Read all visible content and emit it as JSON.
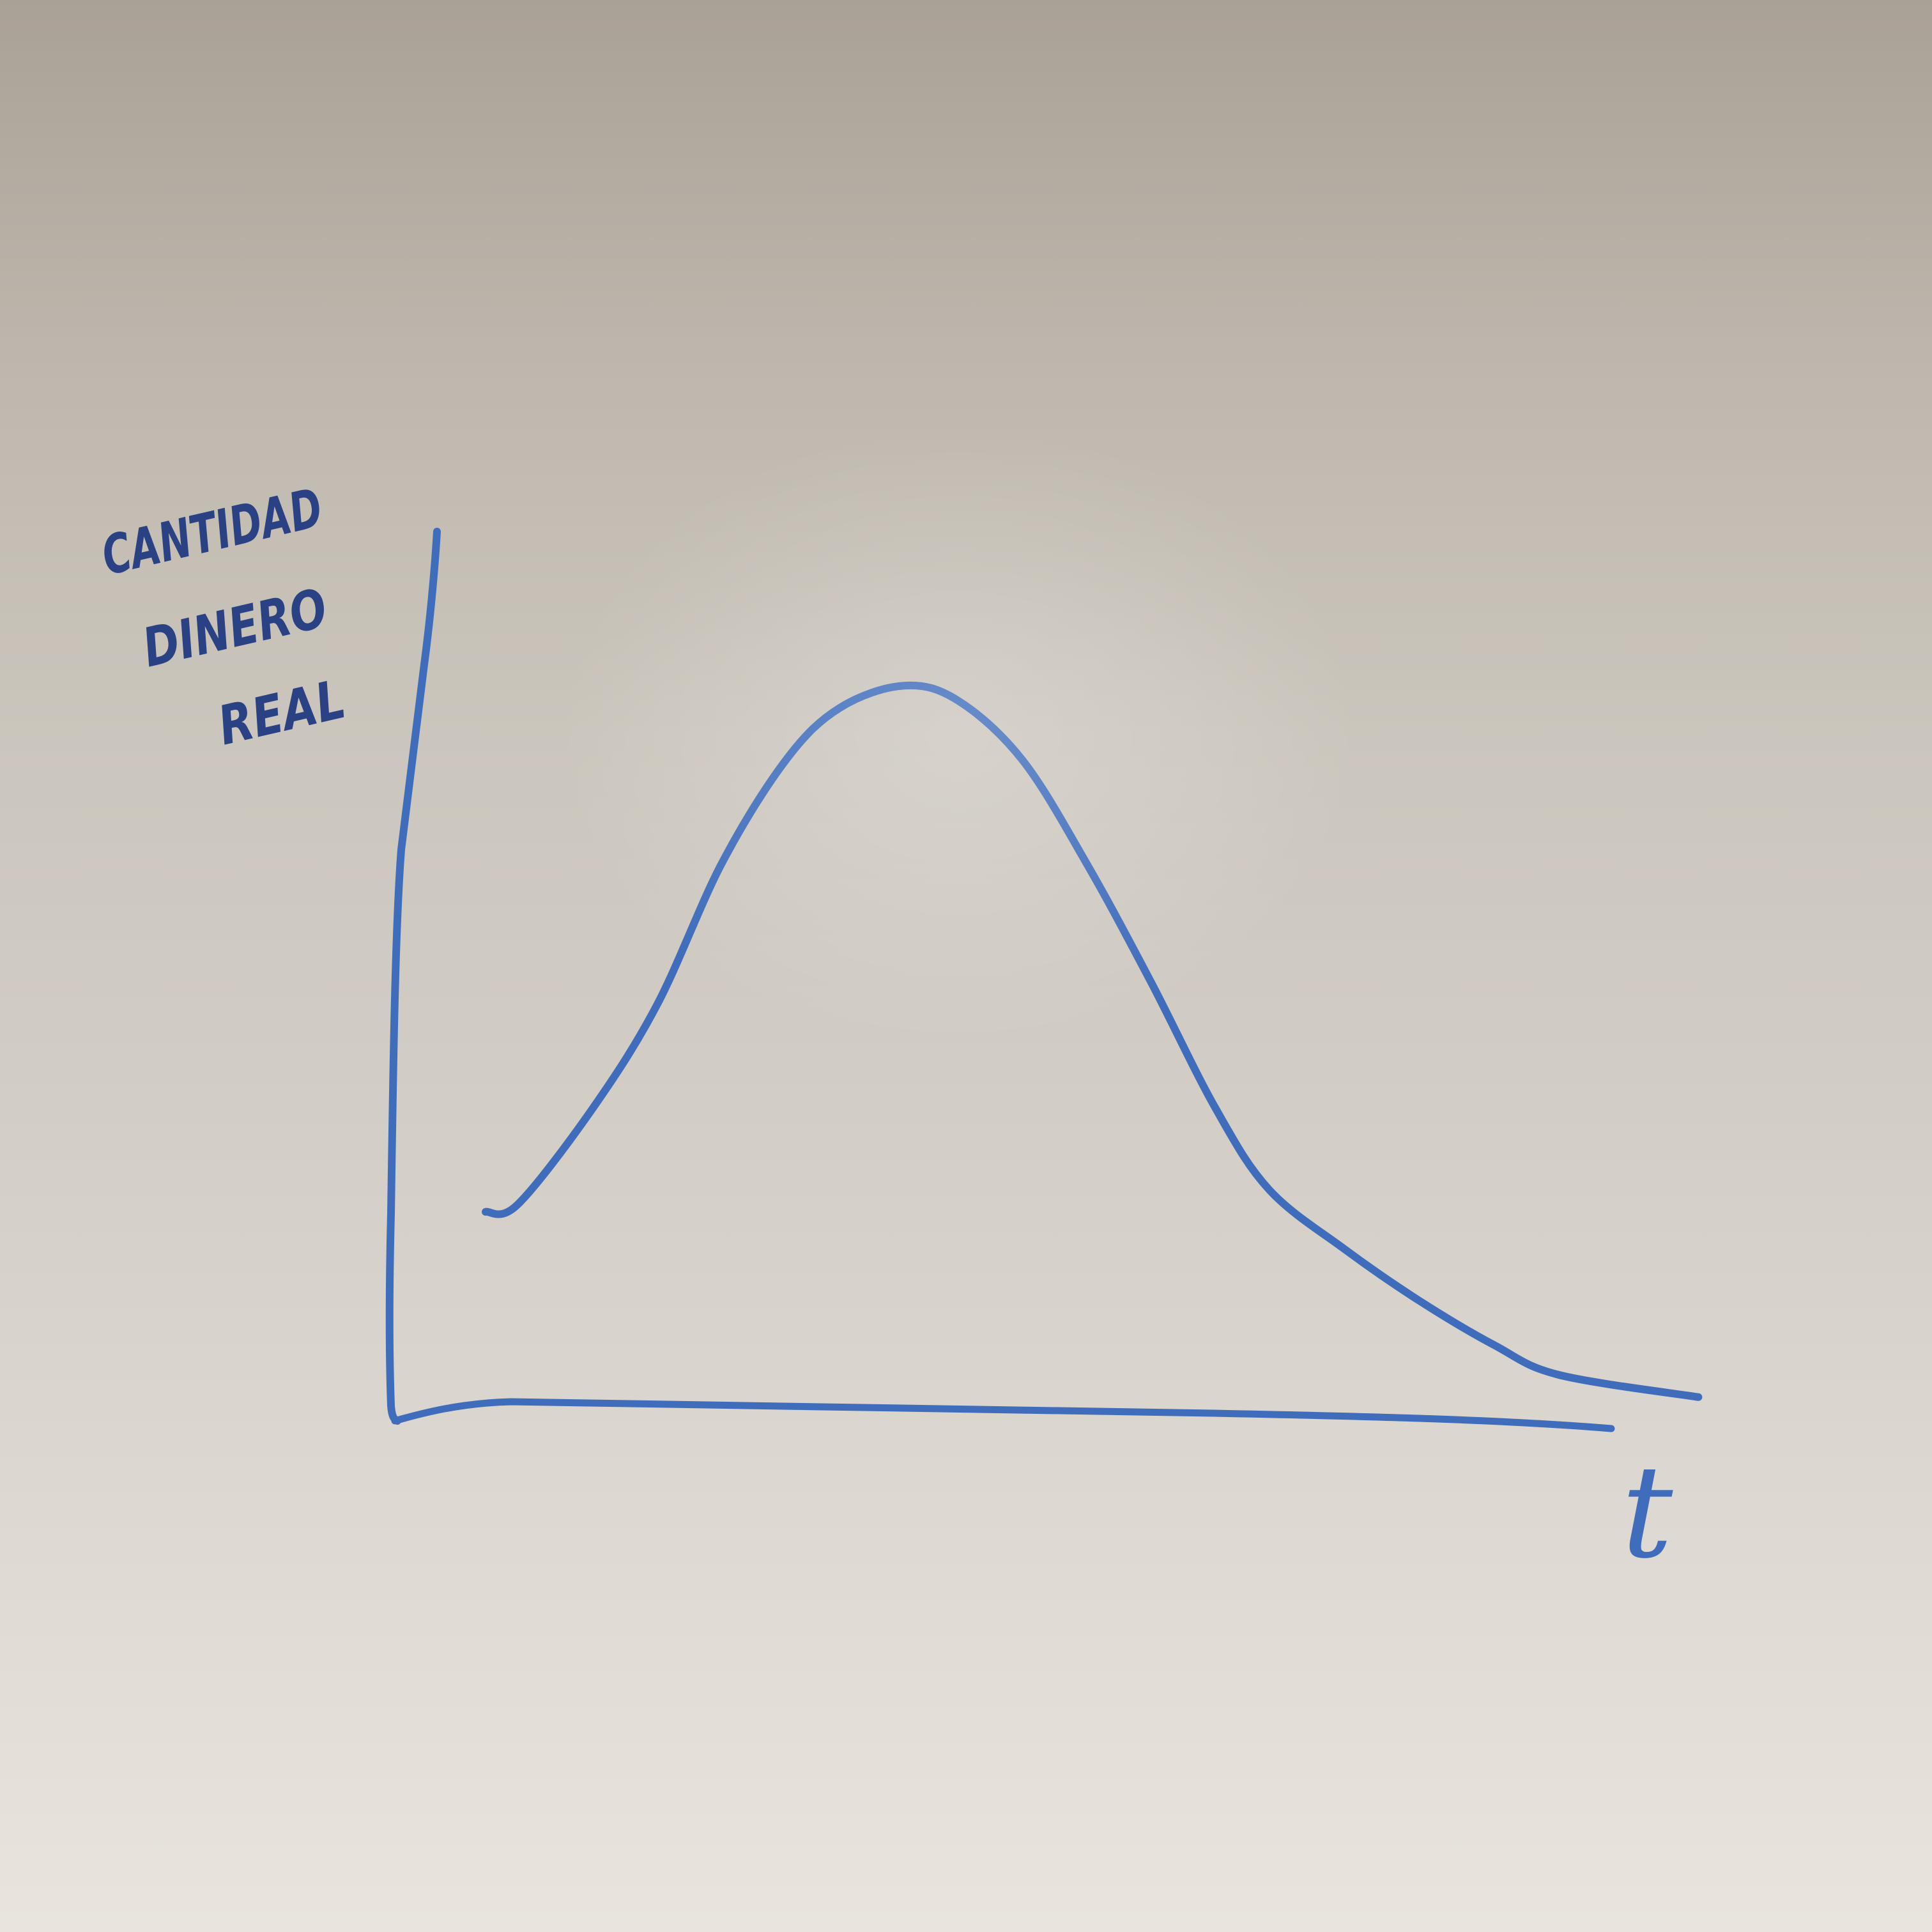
{
  "chart_data": {
    "type": "line",
    "title": "",
    "ylabel": [
      "CANTIDAD",
      "DINERO",
      "REAL"
    ],
    "xlabel": "t",
    "xlim": [
      0,
      10
    ],
    "ylim": [
      0,
      10
    ],
    "grid": false,
    "legend": "none",
    "series": [
      {
        "x": [
          0.0,
          0.3,
          1.0,
          1.6,
          2.2,
          2.8,
          3.3,
          3.9,
          4.4,
          5.0,
          5.6,
          6.2,
          6.8,
          7.3,
          8.0,
          8.7,
          9.4,
          10.0,
          11.3
        ],
        "y": [
          2.7,
          2.8,
          4.1,
          5.5,
          7.4,
          8.8,
          9.5,
          9.8,
          9.6,
          8.8,
          7.4,
          5.8,
          4.1,
          3.0,
          2.2,
          1.5,
          0.9,
          0.5,
          0.2
        ],
        "color": "#3f6dbb"
      }
    ]
  },
  "colors": {
    "marker_blue": "#3f6dbb",
    "marker_dark": "#2a4184"
  }
}
